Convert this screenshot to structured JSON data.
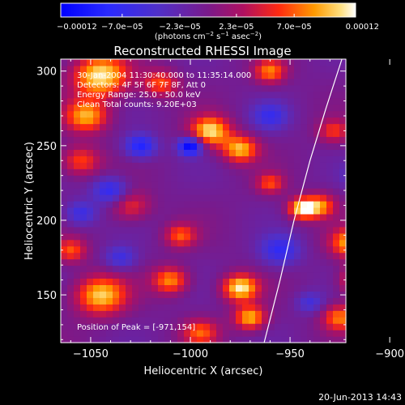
{
  "chart_data": {
    "type": "heatmap",
    "title": "Reconstructed RHESSI Image",
    "xlabel": "Heliocentric X (arcsec)",
    "ylabel": "Heliocentric Y (arcsec)",
    "xlim": [
      -1065,
      -922
    ],
    "ylim": [
      118,
      308
    ],
    "x_ticks": [
      -1050,
      -1000,
      -950,
      -900
    ],
    "x_tick_labels": [
      "−1050",
      "−1000",
      "−950",
      "−900"
    ],
    "y_ticks": [
      150,
      200,
      250,
      300
    ],
    "y_tick_labels": [
      "150",
      "200",
      "250",
      "300"
    ],
    "colorbar": {
      "range": [
        -0.00012,
        0.00012
      ],
      "ticks": [
        -0.00012,
        -7e-05,
        -2.3e-05,
        2.3e-05,
        7e-05,
        0.00012
      ],
      "tick_labels": [
        "−0.00012",
        "−7.0e−05",
        "−2.3e−05",
        "2.3e−05",
        "7.0e−05",
        "0.00012"
      ],
      "unit_prefix": "(photons cm",
      "unit_exp1": "−2",
      "unit_mid": " s",
      "unit_exp2": "−1",
      "unit_suffix": " asec",
      "unit_exp3": "−2",
      "unit_close": ")"
    },
    "annotations": [
      "30-Jan-2004 11:30:40.000 to 11:35:14.000",
      "Detectors: 4F 5F 6F 7F 8F, Att 0",
      "Energy Range: 25.0 - 50.0 keV",
      "Clean     Total counts: 9.20E+03"
    ],
    "peak_label": "Position of Peak = [-971,154]",
    "limb_curve": [
      [
        -963,
        118
      ],
      [
        -955,
        160
      ],
      [
        -948,
        200
      ],
      [
        -940,
        240
      ],
      [
        -932,
        275
      ],
      [
        -924,
        308
      ]
    ],
    "blobs": [
      {
        "x": -1045,
        "y": 297,
        "w": 14,
        "v": 1.0
      },
      {
        "x": -1052,
        "y": 270,
        "w": 11,
        "v": 0.8
      },
      {
        "x": -1055,
        "y": 240,
        "w": 10,
        "v": 0.6
      },
      {
        "x": -1030,
        "y": 210,
        "w": 10,
        "v": 0.5
      },
      {
        "x": -1015,
        "y": 292,
        "w": 9,
        "v": 0.6
      },
      {
        "x": -990,
        "y": 260,
        "w": 10,
        "v": 0.95
      },
      {
        "x": -975,
        "y": 248,
        "w": 9,
        "v": 0.85
      },
      {
        "x": -960,
        "y": 300,
        "w": 8,
        "v": 0.7
      },
      {
        "x": -944,
        "y": 208,
        "w": 7,
        "v": 0.95
      },
      {
        "x": -935,
        "y": 210,
        "w": 8,
        "v": 0.7
      },
      {
        "x": -928,
        "y": 260,
        "w": 8,
        "v": 0.5
      },
      {
        "x": -1045,
        "y": 150,
        "w": 13,
        "v": 0.9
      },
      {
        "x": -1010,
        "y": 160,
        "w": 9,
        "v": 0.75
      },
      {
        "x": -995,
        "y": 125,
        "w": 9,
        "v": 0.6
      },
      {
        "x": -975,
        "y": 155,
        "w": 9,
        "v": 1.0
      },
      {
        "x": -970,
        "y": 135,
        "w": 8,
        "v": 0.85
      },
      {
        "x": -920,
        "y": 185,
        "w": 10,
        "v": 0.8
      },
      {
        "x": -915,
        "y": 160,
        "w": 9,
        "v": 0.9
      },
      {
        "x": -925,
        "y": 135,
        "w": 9,
        "v": 0.7
      },
      {
        "x": -1060,
        "y": 180,
        "w": 8,
        "v": 0.6
      },
      {
        "x": -1005,
        "y": 190,
        "w": 8,
        "v": 0.6
      },
      {
        "x": -960,
        "y": 225,
        "w": 7,
        "v": 0.55
      },
      {
        "x": -1000,
        "y": 250,
        "w": 6,
        "v": -1.0
      },
      {
        "x": -1025,
        "y": 250,
        "w": 8,
        "v": -0.7
      },
      {
        "x": -1040,
        "y": 220,
        "w": 9,
        "v": -0.6
      },
      {
        "x": -955,
        "y": 180,
        "w": 10,
        "v": -0.55
      },
      {
        "x": -960,
        "y": 270,
        "w": 9,
        "v": -0.45
      },
      {
        "x": -1055,
        "y": 205,
        "w": 8,
        "v": -0.5
      },
      {
        "x": -1035,
        "y": 175,
        "w": 8,
        "v": -0.45
      },
      {
        "x": -915,
        "y": 230,
        "w": 8,
        "v": -0.4
      },
      {
        "x": -940,
        "y": 145,
        "w": 7,
        "v": -0.4
      }
    ]
  },
  "footer": {
    "timestamp": "20-Jun-2013 14:43"
  }
}
